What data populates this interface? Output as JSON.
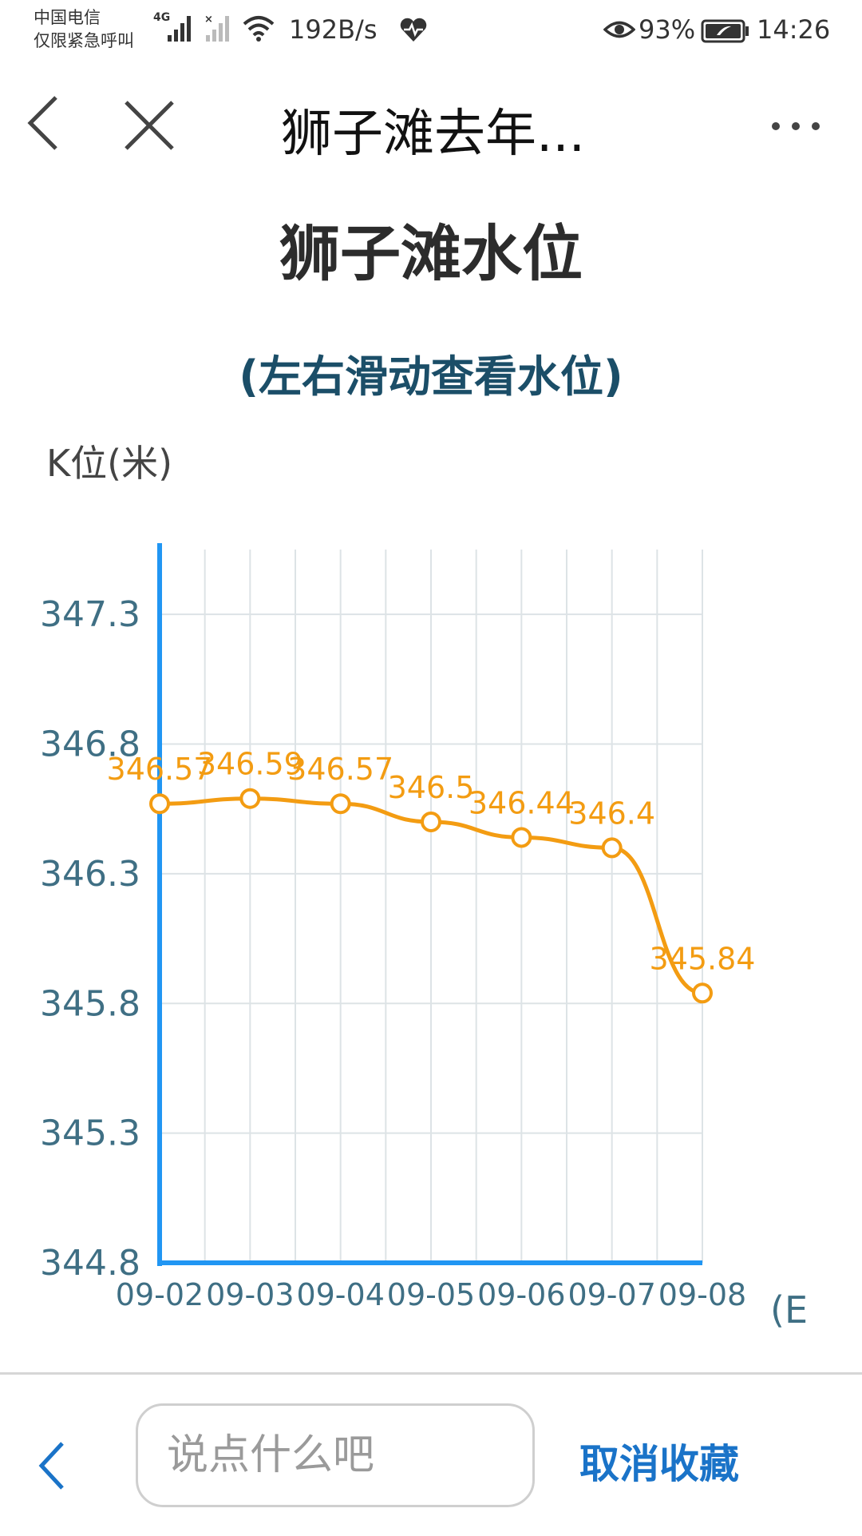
{
  "status_bar": {
    "carrier_line1": "中国电信",
    "carrier_line2": "仅限紧急呼叫",
    "network_label": "4G",
    "net_speed": "192B/s",
    "battery_percent": "93%",
    "time": "14:26"
  },
  "nav": {
    "title": "狮子滩去年..."
  },
  "chart_data": {
    "type": "line",
    "title": "狮子滩水位",
    "subtitle": "(左右滑动查看水位)",
    "ylabel": "K位(米)",
    "xlabel": "(E",
    "categories": [
      "09-02",
      "09-03",
      "09-04",
      "09-05",
      "09-06",
      "09-07",
      "09-08"
    ],
    "y_ticks": [
      "347.3",
      "346.8",
      "346.3",
      "345.8",
      "345.3",
      "344.8"
    ],
    "ylim": [
      344.8,
      347.55
    ],
    "grid": true,
    "series": [
      {
        "values": [
          346.57,
          346.59,
          346.57,
          346.5,
          346.44,
          346.4,
          345.84
        ],
        "labels": [
          "346.57",
          "346.59",
          "346.57",
          "346.5",
          "346.44",
          "346.4",
          "345.84"
        ],
        "color": "#f39c12"
      }
    ],
    "axis_color": "#2196f3",
    "label_color": "#3f6f84"
  },
  "bottom_bar": {
    "comment_placeholder": "说点什么吧",
    "unfavorite_label": "取消收藏"
  }
}
